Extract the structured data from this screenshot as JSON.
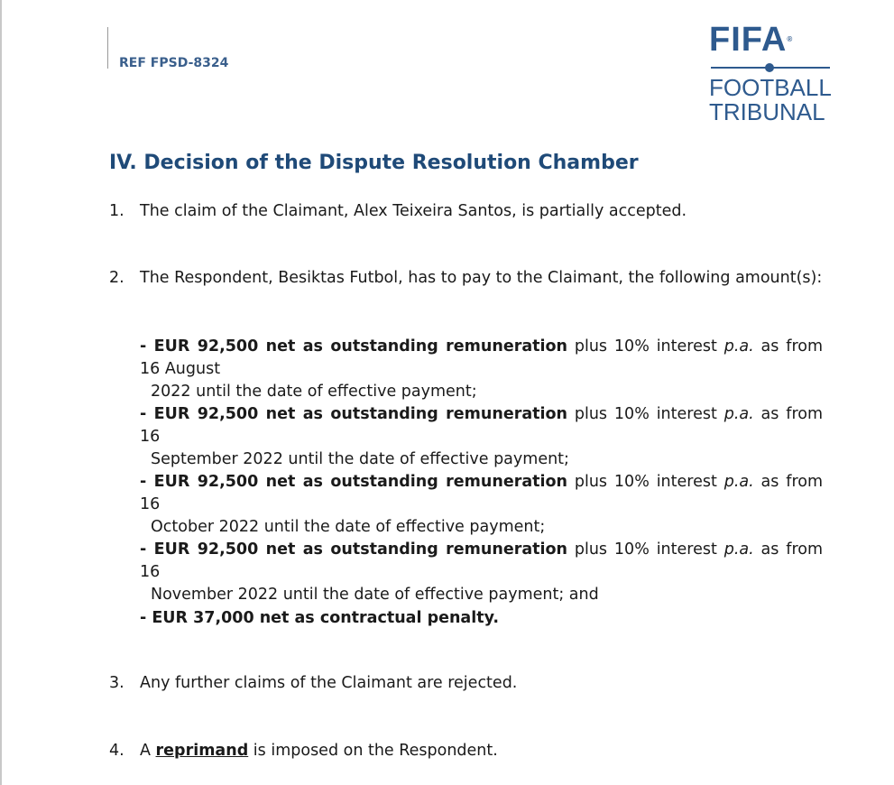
{
  "header": {
    "ref": "REF FPSD-8324",
    "logo": {
      "brand": "FIFA",
      "line1": "FOOTBALL",
      "line2": "TRIBUNAL",
      "color": "#2e5a8e"
    }
  },
  "title": "IV. Decision of the Dispute Resolution Chamber",
  "items": [
    {
      "num": "1.",
      "text": "The claim of the Claimant, Alex Teixeira Santos, is partially accepted."
    },
    {
      "num": "2.",
      "text": "The Respondent, Besiktas Futbol, has to pay to the Claimant, the following amount(s):"
    },
    {
      "num": "3.",
      "text": "Any further claims of the Claimant are rejected."
    },
    {
      "num": "4.",
      "pre": "A ",
      "bold": "reprimand",
      "post": " is imposed on the Respondent."
    }
  ],
  "amounts": [
    {
      "bold": "- EUR 92,500 net as outstanding remuneration",
      "mid": " plus 10% interest ",
      "ital": "p.a.",
      "line1_end": " as from 16 August",
      "line2": "2022 until the date of effective payment;"
    },
    {
      "bold": "- EUR 92,500 net as outstanding remuneration",
      "mid": " plus 10% interest ",
      "ital": "p.a.",
      "line1_end": " as from 16",
      "line2": "September 2022 until the date of effective payment;"
    },
    {
      "bold": "- EUR 92,500 net as outstanding remuneration",
      "mid": " plus 10% interest ",
      "ital": "p.a.",
      "line1_end": " as from 16",
      "line2": "October 2022 until the date of effective payment;"
    },
    {
      "bold": "- EUR 92,500 net as outstanding remuneration",
      "mid": " plus 10% interest ",
      "ital": "p.a.",
      "line1_end": " as from 16",
      "line2": "November 2022 until the date of effective payment; and"
    },
    {
      "bold": "- EUR 37,000 net as contractual penalty."
    }
  ]
}
